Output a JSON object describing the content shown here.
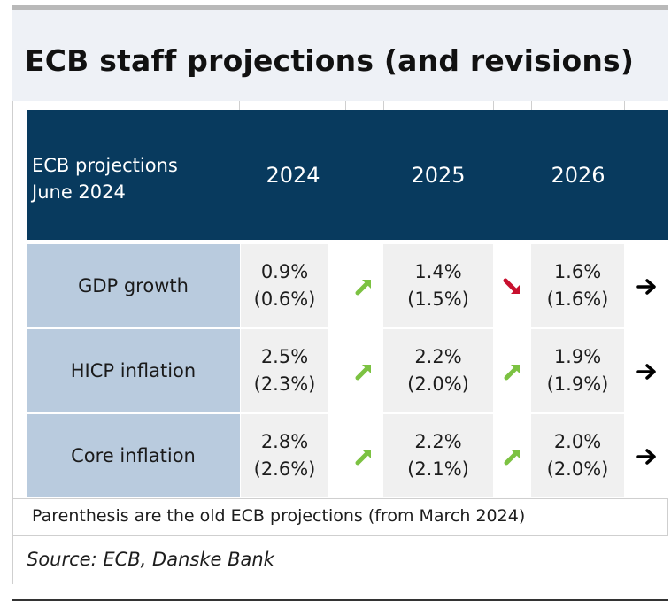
{
  "title": "ECB staff projections (and revisions)",
  "table": {
    "header_label_line1": "ECB projections",
    "header_label_line2": "June 2024",
    "years": [
      "2024",
      "2025",
      "2026"
    ],
    "rows": [
      {
        "label": "GDP growth",
        "cells": [
          {
            "new": "0.9%",
            "old": "(0.6%)",
            "revision": "up"
          },
          {
            "new": "1.4%",
            "old": "(1.5%)",
            "revision": "down"
          },
          {
            "new": "1.6%",
            "old": "(1.6%)",
            "revision": "unchanged"
          }
        ]
      },
      {
        "label": "HICP inflation",
        "cells": [
          {
            "new": "2.5%",
            "old": "(2.3%)",
            "revision": "up"
          },
          {
            "new": "2.2%",
            "old": "(2.0%)",
            "revision": "up"
          },
          {
            "new": "1.9%",
            "old": "(1.9%)",
            "revision": "unchanged"
          }
        ]
      },
      {
        "label": "Core inflation",
        "cells": [
          {
            "new": "2.8%",
            "old": "(2.6%)",
            "revision": "up"
          },
          {
            "new": "2.2%",
            "old": "(2.1%)",
            "revision": "up"
          },
          {
            "new": "2.0%",
            "old": "(2.0%)",
            "revision": "unchanged"
          }
        ]
      }
    ]
  },
  "note": "Parenthesis are the old ECB projections (from March 2024)",
  "source": "Source: ECB, Danske Bank",
  "colors": {
    "header_bg": "#083a5e",
    "row_label_bg": "#b9cbde",
    "cell_bg": "#f0f0f0",
    "arrow_up": "#7cc242",
    "arrow_down": "#c8102e",
    "arrow_flat": "#000000"
  },
  "icons": {
    "up": "arrow-up-right-icon",
    "down": "arrow-down-right-icon",
    "unchanged": "arrow-right-icon"
  }
}
